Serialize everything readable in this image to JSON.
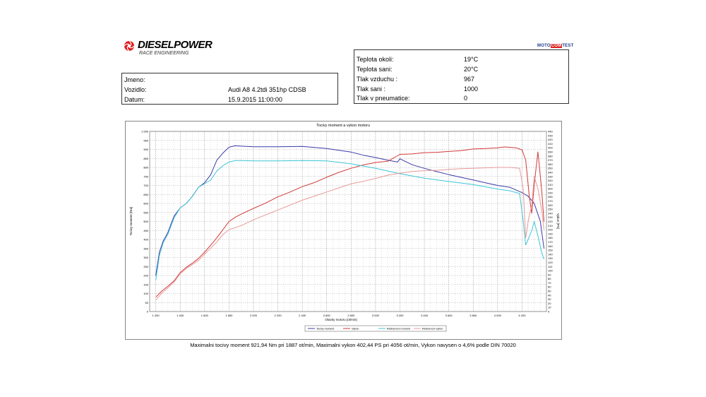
{
  "header": {
    "brand": "DIESELPOWER",
    "brand_sub": "RACE ENGINEERING",
    "badge_left": "MOTO",
    "badge_mid": "COM",
    "badge_right": "TEST"
  },
  "info": {
    "name_label": "Jmeno:",
    "name_value": "",
    "vehicle_label": "Vozidlo:",
    "vehicle_value": "Audi A8 4.2tdi 351hp CDSB",
    "date_label": "Datum:",
    "date_value": "15.9.2015 11:00:00"
  },
  "conditions": [
    {
      "label": "Teplota okoli:",
      "value": "19°C"
    },
    {
      "label": "Teplota sani:",
      "value": "20°C"
    },
    {
      "label": "Tlak vzduchu :",
      "value": "967"
    },
    {
      "label": "Tlak sani :",
      "value": "1000"
    },
    {
      "label": "Tlak v pneumatice:",
      "value": "0"
    }
  ],
  "summary": "Maximalni tocivy moment 921,94 Nm pri 1887 ot/min,  Maximalni vykon 402,44 PS pri 4056 ot/min,  Vykon navysen o 4,6% podle DIN 70020",
  "colors": {
    "torque": "#3b3ba8",
    "power": "#d23a3a",
    "ref_torque": "#3fc6d8",
    "ref_power": "#e89a9a",
    "grid": "#9a9a9a"
  },
  "chart_data": {
    "type": "line",
    "title": "Tocivy moment a vykon motoru",
    "xlabel": "Otacky motoru [ot/min]",
    "ylabel": "Tocivy moment [Nm]",
    "y2label": "Vykon [PS]",
    "xlim": [
      1150,
      4400
    ],
    "ylim": [
      0,
      1000
    ],
    "y2lim": [
      0,
      440
    ],
    "x_ticks": [
      "1 200",
      "1 400",
      "1 600",
      "1 800",
      "2 000",
      "2 200",
      "2 400",
      "2 600",
      "2 800",
      "3 000",
      "3 200",
      "3 400",
      "3 600",
      "3 800",
      "4 000",
      "4 200"
    ],
    "x_tick_values": [
      1200,
      1400,
      1600,
      1800,
      2000,
      2200,
      2400,
      2600,
      2800,
      3000,
      3200,
      3400,
      3600,
      3800,
      4000,
      4200
    ],
    "y_ticks": [
      "0",
      "50",
      "100",
      "150",
      "200",
      "250",
      "300",
      "350",
      "400",
      "450",
      "500",
      "550",
      "600",
      "650",
      "700",
      "750",
      "800",
      "850",
      "900",
      "950",
      "1 000"
    ],
    "y_tick_values": [
      0,
      50,
      100,
      150,
      200,
      250,
      300,
      350,
      400,
      450,
      500,
      550,
      600,
      650,
      700,
      750,
      800,
      850,
      900,
      950,
      1000
    ],
    "y2_ticks": [
      "0",
      "10",
      "20",
      "30",
      "40",
      "50",
      "60",
      "70",
      "80",
      "90",
      "100",
      "110",
      "120",
      "130",
      "140",
      "150",
      "160",
      "170",
      "180",
      "190",
      "200",
      "210",
      "220",
      "230",
      "240",
      "250",
      "260",
      "270",
      "280",
      "290",
      "300",
      "310",
      "320",
      "330",
      "340",
      "350",
      "360",
      "370",
      "380",
      "390",
      "400",
      "410",
      "420",
      "430",
      "440"
    ],
    "legend": [
      "Tocivy moment",
      "Vykon",
      "Referencni moment",
      "Referencni vykon"
    ],
    "legend_position": "bottom",
    "grid": true,
    "series": [
      {
        "name": "Tocivy moment",
        "axis": "left",
        "color": "#3b3ba8",
        "points": [
          [
            1200,
            200
          ],
          [
            1230,
            330
          ],
          [
            1260,
            390
          ],
          [
            1300,
            440
          ],
          [
            1350,
            530
          ],
          [
            1400,
            575
          ],
          [
            1450,
            600
          ],
          [
            1500,
            640
          ],
          [
            1550,
            690
          ],
          [
            1600,
            715
          ],
          [
            1650,
            760
          ],
          [
            1700,
            840
          ],
          [
            1750,
            880
          ],
          [
            1800,
            912
          ],
          [
            1850,
            920
          ],
          [
            1900,
            918
          ],
          [
            2000,
            915
          ],
          [
            2200,
            915
          ],
          [
            2400,
            917
          ],
          [
            2600,
            905
          ],
          [
            2800,
            885
          ],
          [
            2900,
            868
          ],
          [
            3000,
            855
          ],
          [
            3100,
            840
          ],
          [
            3180,
            830
          ],
          [
            3200,
            848
          ],
          [
            3300,
            815
          ],
          [
            3400,
            795
          ],
          [
            3500,
            777
          ],
          [
            3600,
            760
          ],
          [
            3700,
            745
          ],
          [
            3800,
            730
          ],
          [
            3900,
            715
          ],
          [
            4000,
            700
          ],
          [
            4100,
            690
          ],
          [
            4200,
            660
          ],
          [
            4250,
            640
          ],
          [
            4300,
            600
          ],
          [
            4350,
            500
          ],
          [
            4380,
            350
          ]
        ]
      },
      {
        "name": "Vykon",
        "axis": "right",
        "color": "#d23a3a",
        "points": [
          [
            1200,
            35
          ],
          [
            1250,
            50
          ],
          [
            1300,
            62
          ],
          [
            1350,
            75
          ],
          [
            1400,
            95
          ],
          [
            1450,
            108
          ],
          [
            1500,
            118
          ],
          [
            1550,
            130
          ],
          [
            1600,
            145
          ],
          [
            1650,
            162
          ],
          [
            1700,
            180
          ],
          [
            1750,
            200
          ],
          [
            1800,
            220
          ],
          [
            1850,
            230
          ],
          [
            1900,
            238
          ],
          [
            2000,
            252
          ],
          [
            2100,
            265
          ],
          [
            2200,
            280
          ],
          [
            2300,
            292
          ],
          [
            2400,
            305
          ],
          [
            2500,
            315
          ],
          [
            2600,
            328
          ],
          [
            2700,
            340
          ],
          [
            2800,
            350
          ],
          [
            2900,
            358
          ],
          [
            3000,
            364
          ],
          [
            3100,
            367
          ],
          [
            3200,
            384
          ],
          [
            3300,
            385
          ],
          [
            3400,
            388
          ],
          [
            3500,
            389
          ],
          [
            3600,
            391
          ],
          [
            3700,
            393
          ],
          [
            3800,
            397
          ],
          [
            3900,
            398
          ],
          [
            4000,
            400
          ],
          [
            4056,
            402
          ],
          [
            4150,
            400
          ],
          [
            4200,
            395
          ],
          [
            4230,
            370
          ],
          [
            4260,
            280
          ],
          [
            4280,
            240
          ],
          [
            4300,
            310
          ],
          [
            4330,
            390
          ],
          [
            4360,
            300
          ],
          [
            4380,
            220
          ]
        ]
      },
      {
        "name": "Referencni moment",
        "axis": "left",
        "color": "#3fc6d8",
        "points": [
          [
            1200,
            175
          ],
          [
            1230,
            310
          ],
          [
            1260,
            380
          ],
          [
            1300,
            430
          ],
          [
            1350,
            520
          ],
          [
            1400,
            575
          ],
          [
            1450,
            600
          ],
          [
            1500,
            640
          ],
          [
            1550,
            690
          ],
          [
            1600,
            710
          ],
          [
            1650,
            730
          ],
          [
            1700,
            780
          ],
          [
            1750,
            810
          ],
          [
            1800,
            830
          ],
          [
            1850,
            838
          ],
          [
            1900,
            838
          ],
          [
            2000,
            836
          ],
          [
            2200,
            836
          ],
          [
            2400,
            838
          ],
          [
            2600,
            836
          ],
          [
            2800,
            820
          ],
          [
            3000,
            795
          ],
          [
            3200,
            765
          ],
          [
            3400,
            740
          ],
          [
            3600,
            722
          ],
          [
            3800,
            705
          ],
          [
            4000,
            680
          ],
          [
            4100,
            670
          ],
          [
            4180,
            655
          ],
          [
            4210,
            500
          ],
          [
            4230,
            370
          ],
          [
            4250,
            400
          ],
          [
            4280,
            450
          ],
          [
            4300,
            500
          ],
          [
            4330,
            420
          ],
          [
            4360,
            330
          ],
          [
            4380,
            290
          ]
        ]
      },
      {
        "name": "Referencni vykon",
        "axis": "right",
        "color": "#e89a9a",
        "points": [
          [
            1200,
            28
          ],
          [
            1250,
            45
          ],
          [
            1300,
            58
          ],
          [
            1350,
            72
          ],
          [
            1400,
            92
          ],
          [
            1450,
            105
          ],
          [
            1500,
            115
          ],
          [
            1550,
            125
          ],
          [
            1600,
            140
          ],
          [
            1650,
            155
          ],
          [
            1700,
            170
          ],
          [
            1750,
            188
          ],
          [
            1800,
            200
          ],
          [
            1900,
            210
          ],
          [
            2000,
            224
          ],
          [
            2100,
            236
          ],
          [
            2200,
            248
          ],
          [
            2300,
            260
          ],
          [
            2400,
            272
          ],
          [
            2500,
            282
          ],
          [
            2600,
            292
          ],
          [
            2700,
            302
          ],
          [
            2800,
            312
          ],
          [
            2900,
            318
          ],
          [
            3000,
            325
          ],
          [
            3100,
            333
          ],
          [
            3200,
            338
          ],
          [
            3300,
            342
          ],
          [
            3400,
            344
          ],
          [
            3500,
            345
          ],
          [
            3600,
            347
          ],
          [
            3700,
            349
          ],
          [
            3800,
            350
          ],
          [
            3900,
            351
          ],
          [
            4000,
            352
          ],
          [
            4100,
            352
          ],
          [
            4180,
            350
          ],
          [
            4210,
            300
          ],
          [
            4230,
            180
          ],
          [
            4250,
            220
          ],
          [
            4280,
            260
          ],
          [
            4300,
            330
          ],
          [
            4330,
            300
          ],
          [
            4360,
            250
          ],
          [
            4380,
            200
          ]
        ]
      }
    ]
  }
}
